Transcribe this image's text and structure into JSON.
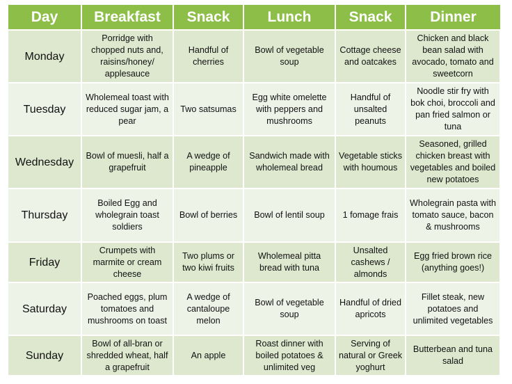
{
  "headers": [
    "Day",
    "Breakfast",
    "Snack",
    "Lunch",
    "Snack",
    "Dinner"
  ],
  "rows": [
    [
      "Monday",
      "Porridge with chopped nuts and, raisins/honey/ applesauce",
      "Handful of cherries",
      "Bowl of vegetable soup",
      "Cottage cheese and oatcakes",
      "Chicken and black bean salad with avocado, tomato and sweetcorn"
    ],
    [
      "Tuesday",
      "Wholemeal toast with reduced sugar jam, a pear",
      "Two satsumas",
      "Egg white omelette with peppers and mushrooms",
      "Handful of unsalted peanuts",
      "Noodle stir fry with bok choi,  broccoli and pan fried salmon or tuna"
    ],
    [
      "Wednesday",
      "Bowl of muesli, half a grapefruit",
      "A wedge of pineapple",
      "Sandwich made with wholemeal bread",
      "Vegetable sticks with houmous",
      "Seasoned, grilled chicken breast with vegetables and boiled new potatoes"
    ],
    [
      "Thursday",
      "Boiled Egg and wholegrain toast soldiers",
      "Bowl of berries",
      "Bowl of lentil soup",
      "1 fomage frais",
      "Wholegrain pasta with tomato sauce, bacon & mushrooms"
    ],
    [
      "Friday",
      "Crumpets with marmite or cream cheese",
      "Two plums or two kiwi fruits",
      "Wholemeal pitta bread with tuna",
      "Unsalted cashews / almonds",
      "Egg fried brown rice (anything goes!)"
    ],
    [
      "Saturday",
      "Poached eggs, plum tomatoes and mushrooms on toast",
      "A wedge of cantaloupe melon",
      "Bowl of vegetable soup",
      "Handful of dried apricots",
      "Fillet steak, new potatoes and unlimited vegetables"
    ],
    [
      "Sunday",
      "Bowl of all-bran or shredded wheat, half a grapefruit",
      "An apple",
      "Roast dinner with boiled potatoes & unlimited veg",
      "Serving of natural or Greek yoghurt",
      "Butterbean and tuna salad"
    ]
  ]
}
